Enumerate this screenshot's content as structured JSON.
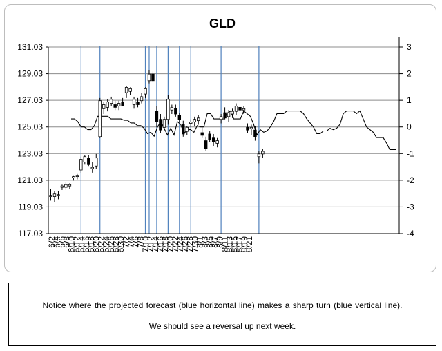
{
  "chart_data": {
    "type": "candlestick",
    "title": "GLD",
    "y_left": {
      "min": 117.03,
      "max": 131.03,
      "ticks": [
        "117.03",
        "119.03",
        "121.03",
        "123.03",
        "125.03",
        "127.03",
        "129.03",
        "131.03"
      ]
    },
    "y_right": {
      "min": -4,
      "max": 3,
      "ticks": [
        "-4",
        "-3",
        "-2",
        "-1",
        "0",
        "1",
        "2",
        "3"
      ]
    },
    "x_labels": [
      "6/2",
      "6/4",
      "6/6",
      "6/8",
      "6/10",
      "6/12",
      "6/14",
      "6/16",
      "6/18",
      "6/20",
      "6/22",
      "6/24",
      "6/26",
      "6/28",
      "6/30",
      "7/2",
      "7/4",
      "7/6",
      "7/8",
      "7/10",
      "7/12",
      "7/14",
      "7/16",
      "7/18",
      "7/20",
      "7/22",
      "7/24",
      "7/26",
      "7/28",
      "7/30",
      "8/1",
      "8/3",
      "8/5",
      "8/7",
      "8/9",
      "8/11",
      "8/13",
      "8/15",
      "8/17",
      "8/19",
      "8/21"
    ],
    "candles": [
      {
        "o": 119.8,
        "h": 120.4,
        "l": 119.5,
        "c": 119.9
      },
      {
        "o": 119.8,
        "h": 120.2,
        "l": 119.4,
        "c": 120.0
      },
      {
        "o": 119.9,
        "h": 120.2,
        "l": 119.6,
        "c": 119.95
      },
      {
        "o": 120.5,
        "h": 120.7,
        "l": 120.3,
        "c": 120.6
      },
      {
        "o": 120.5,
        "h": 120.9,
        "l": 120.3,
        "c": 120.7
      },
      {
        "o": 120.6,
        "h": 120.8,
        "l": 120.4,
        "c": 120.7
      },
      {
        "o": 121.2,
        "h": 121.4,
        "l": 121.0,
        "c": 121.3
      },
      {
        "o": 121.3,
        "h": 121.5,
        "l": 121.1,
        "c": 121.4
      },
      {
        "o": 121.8,
        "h": 122.8,
        "l": 121.6,
        "c": 122.6
      },
      {
        "o": 122.4,
        "h": 122.9,
        "l": 122.2,
        "c": 122.8
      },
      {
        "o": 122.7,
        "h": 122.9,
        "l": 122.1,
        "c": 122.2
      },
      {
        "o": 121.9,
        "h": 122.4,
        "l": 121.6,
        "c": 122.0
      },
      {
        "o": 122.1,
        "h": 123.0,
        "l": 121.9,
        "c": 122.7
      },
      {
        "o": 124.3,
        "h": 127.2,
        "l": 124.2,
        "c": 127.0
      },
      {
        "o": 126.4,
        "h": 126.9,
        "l": 126.0,
        "c": 126.7
      },
      {
        "o": 126.5,
        "h": 127.1,
        "l": 126.2,
        "c": 126.9
      },
      {
        "o": 126.8,
        "h": 127.3,
        "l": 126.6,
        "c": 127.1
      },
      {
        "o": 126.7,
        "h": 127.0,
        "l": 126.3,
        "c": 126.5
      },
      {
        "o": 126.6,
        "h": 127.0,
        "l": 126.3,
        "c": 126.8
      },
      {
        "o": 126.9,
        "h": 127.2,
        "l": 126.6,
        "c": 126.6
      },
      {
        "o": 127.6,
        "h": 128.1,
        "l": 127.2,
        "c": 128.0
      },
      {
        "o": 127.7,
        "h": 128.0,
        "l": 127.4,
        "c": 127.9
      },
      {
        "o": 126.7,
        "h": 127.3,
        "l": 126.4,
        "c": 127.1
      },
      {
        "o": 126.9,
        "h": 127.2,
        "l": 126.5,
        "c": 126.7
      },
      {
        "o": 127.0,
        "h": 127.6,
        "l": 126.8,
        "c": 127.3
      },
      {
        "o": 127.5,
        "h": 128.0,
        "l": 127.2,
        "c": 127.9
      },
      {
        "o": 128.5,
        "h": 129.3,
        "l": 128.3,
        "c": 129.0
      },
      {
        "o": 129.0,
        "h": 129.2,
        "l": 128.4,
        "c": 128.5
      },
      {
        "o": 126.2,
        "h": 126.6,
        "l": 125.0,
        "c": 125.4
      },
      {
        "o": 125.6,
        "h": 126.0,
        "l": 124.6,
        "c": 124.8
      },
      {
        "o": 125.0,
        "h": 125.8,
        "l": 124.8,
        "c": 125.6
      },
      {
        "o": 125.6,
        "h": 127.4,
        "l": 125.2,
        "c": 127.1
      },
      {
        "o": 126.3,
        "h": 126.7,
        "l": 126.0,
        "c": 126.5
      },
      {
        "o": 126.4,
        "h": 126.7,
        "l": 125.8,
        "c": 126.0
      },
      {
        "o": 125.9,
        "h": 126.1,
        "l": 125.4,
        "c": 125.6
      },
      {
        "o": 125.2,
        "h": 125.5,
        "l": 124.3,
        "c": 124.5
      },
      {
        "o": 124.7,
        "h": 125.1,
        "l": 124.4,
        "c": 125.0
      },
      {
        "o": 125.3,
        "h": 125.6,
        "l": 125.0,
        "c": 125.4
      },
      {
        "o": 125.4,
        "h": 125.8,
        "l": 125.1,
        "c": 125.6
      },
      {
        "o": 125.5,
        "h": 125.9,
        "l": 125.2,
        "c": 125.7
      },
      {
        "o": 124.6,
        "h": 125.0,
        "l": 124.2,
        "c": 124.4
      },
      {
        "o": 124.0,
        "h": 124.3,
        "l": 123.2,
        "c": 123.4
      },
      {
        "o": 124.5,
        "h": 124.7,
        "l": 123.9,
        "c": 124.1
      },
      {
        "o": 124.2,
        "h": 124.5,
        "l": 123.6,
        "c": 123.9
      },
      {
        "o": 123.8,
        "h": 124.2,
        "l": 123.5,
        "c": 124.0
      },
      {
        "o": 125.6,
        "h": 126.0,
        "l": 125.3,
        "c": 125.8
      },
      {
        "o": 126.1,
        "h": 126.5,
        "l": 125.6,
        "c": 125.7
      },
      {
        "o": 125.8,
        "h": 126.3,
        "l": 125.4,
        "c": 126.1
      },
      {
        "o": 126.0,
        "h": 126.4,
        "l": 125.7,
        "c": 126.2
      },
      {
        "o": 126.2,
        "h": 126.8,
        "l": 125.9,
        "c": 126.6
      },
      {
        "o": 126.5,
        "h": 126.8,
        "l": 126.1,
        "c": 126.3
      },
      {
        "o": 126.3,
        "h": 126.6,
        "l": 126.0,
        "c": 126.4
      },
      {
        "o": 125.0,
        "h": 125.3,
        "l": 124.6,
        "c": 124.8
      },
      {
        "o": 124.9,
        "h": 125.2,
        "l": 124.4,
        "c": 125.0
      },
      {
        "o": 124.8,
        "h": 125.1,
        "l": 124.0,
        "c": 124.3
      },
      {
        "o": 122.8,
        "h": 123.2,
        "l": 122.3,
        "c": 123.0
      },
      {
        "o": 123.0,
        "h": 123.4,
        "l": 122.7,
        "c": 123.2
      }
    ],
    "forecast": [
      0.3,
      0.3,
      0.2,
      0.0,
      0.0,
      -0.1,
      -0.1,
      0.05,
      0.4,
      0.4,
      0.4,
      0.4,
      0.3,
      0.3,
      0.3,
      0.3,
      0.25,
      0.25,
      0.15,
      0.15,
      0.05,
      0.05,
      -0.05,
      -0.25,
      -0.2,
      -0.35,
      0.0,
      0.2,
      -0.05,
      -0.3,
      -0.05,
      -0.3,
      0.2,
      0.1,
      -0.25,
      -0.1,
      -0.1,
      -0.2,
      0.05,
      0.0,
      0.0,
      0.5,
      0.5,
      0.3,
      0.3,
      0.3,
      0.3,
      0.5,
      0.6,
      0.3,
      0.3,
      0.3,
      0.6,
      0.5,
      0.4,
      0.1,
      -0.3,
      -0.1,
      -0.2,
      -0.15,
      0.0,
      0.2,
      0.5,
      0.5,
      0.5,
      0.6,
      0.6,
      0.6,
      0.6,
      0.6,
      0.5,
      0.3,
      0.15,
      0.0,
      -0.25,
      -0.25,
      -0.15,
      -0.15,
      -0.05,
      -0.1,
      -0.05,
      0.1,
      0.5,
      0.6,
      0.6,
      0.6,
      0.5,
      0.6,
      0.3,
      0.0,
      -0.1,
      -0.2,
      -0.4,
      -0.4,
      -0.4,
      -0.6,
      -0.85,
      -0.85,
      -0.85
    ],
    "turn_markers": [
      8,
      13,
      25,
      26,
      28,
      31,
      34,
      37,
      45,
      55
    ],
    "colors": {
      "grid": "#8c8c8c",
      "forecast": "#000000",
      "markers": "#4f81bd",
      "candle_up": "#ffffff",
      "candle_down": "#000000"
    }
  },
  "note": {
    "line1": "Notice where the projected forecast (blue horizontal line) makes a sharp turn (blue vertical line).",
    "line2": "We should see a reversal  up next week."
  }
}
